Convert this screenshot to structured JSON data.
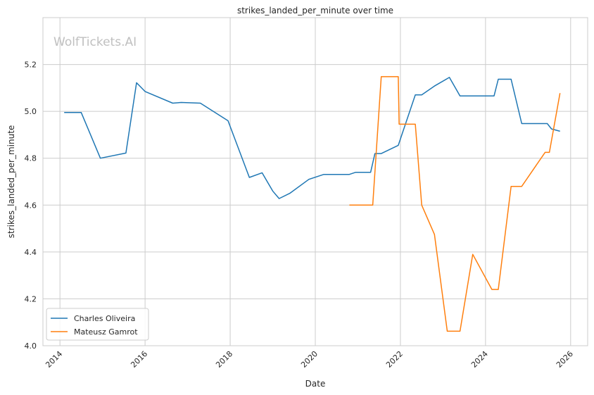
{
  "chart_data": {
    "type": "line",
    "title": "strikes_landed_per_minute over time",
    "xlabel": "Date",
    "ylabel": "strikes_landed_per_minute",
    "watermark": "WolfTickets.AI",
    "xlim": [
      2013.6,
      2026.4
    ],
    "ylim": [
      4.0,
      5.4
    ],
    "xticks": [
      2014,
      2016,
      2018,
      2020,
      2022,
      2024,
      2026
    ],
    "xtick_labels": [
      "2014",
      "2016",
      "2018",
      "2020",
      "2022",
      "2024",
      "2026"
    ],
    "yticks": [
      4.0,
      4.2,
      4.4,
      4.6,
      4.8,
      5.0,
      5.2
    ],
    "ytick_labels": [
      "4.0",
      "4.2",
      "4.4",
      "4.6",
      "4.8",
      "5.0",
      "5.2"
    ],
    "grid": true,
    "legend_position": "lower-left",
    "series": [
      {
        "name": "Charles Oliveira",
        "color": "#1f77b4",
        "x": [
          2014.1,
          2014.5,
          2014.95,
          2015.55,
          2015.8,
          2016.0,
          2016.65,
          2016.85,
          2017.3,
          2017.95,
          2018.45,
          2018.75,
          2019.0,
          2019.15,
          2019.4,
          2019.85,
          2020.2,
          2020.8,
          2020.95,
          2021.3,
          2021.4,
          2021.55,
          2021.95,
          2022.35,
          2022.5,
          2022.8,
          2023.15,
          2023.4,
          2024.2,
          2024.3,
          2024.6,
          2024.85,
          2025.45,
          2025.55,
          2025.75
        ],
        "y": [
          4.995,
          4.995,
          4.8,
          4.822,
          5.122,
          5.085,
          5.035,
          5.038,
          5.035,
          4.96,
          4.718,
          4.738,
          4.66,
          4.628,
          4.65,
          4.71,
          4.731,
          4.731,
          4.74,
          4.74,
          4.82,
          4.82,
          4.855,
          5.07,
          5.07,
          5.108,
          5.145,
          5.066,
          5.066,
          5.137,
          5.137,
          4.948,
          4.948,
          4.925,
          4.915
        ]
      },
      {
        "name": "Mateusz Gamrot",
        "color": "#ff7f0e",
        "x": [
          2020.8,
          2021.35,
          2021.55,
          2021.95,
          2021.97,
          2022.35,
          2022.5,
          2022.8,
          2023.1,
          2023.4,
          2023.7,
          2024.15,
          2024.3,
          2024.6,
          2024.85,
          2025.4,
          2025.5,
          2025.75
        ],
        "y": [
          4.6,
          4.6,
          5.148,
          5.148,
          4.945,
          4.945,
          4.6,
          4.475,
          4.062,
          4.062,
          4.39,
          4.24,
          4.24,
          4.68,
          4.68,
          4.825,
          4.825,
          5.078
        ]
      }
    ]
  }
}
